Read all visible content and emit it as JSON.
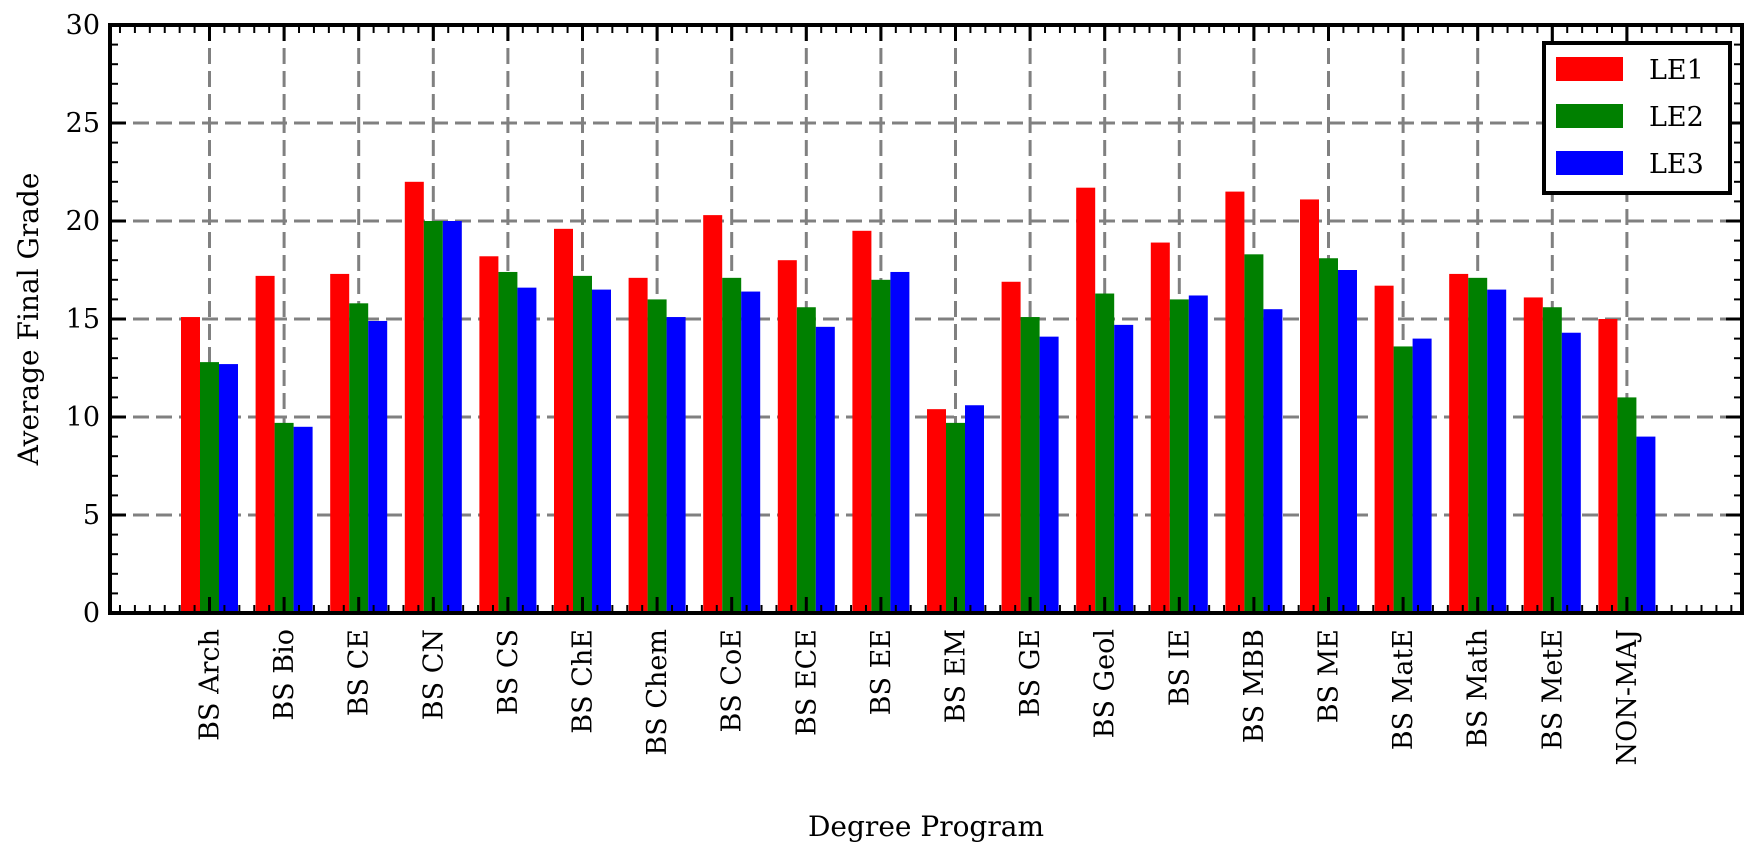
{
  "chart_data": {
    "type": "bar",
    "title": "",
    "xlabel": "Degree Program",
    "ylabel": "Average Final Grade",
    "ylim": [
      0,
      30
    ],
    "yticks": [
      0,
      5,
      10,
      15,
      20,
      25,
      30
    ],
    "grid": true,
    "legend_position": "top-right",
    "categories": [
      "BS Arch",
      "BS Bio",
      "BS CE",
      "BS CN",
      "BS CS",
      "BS ChE",
      "BS Chem",
      "BS CoE",
      "BS ECE",
      "BS EE",
      "BS EM",
      "BS GE",
      "BS Geol",
      "BS IE",
      "BS MBB",
      "BS ME",
      "BS MatE",
      "BS Math",
      "BS MetE",
      "NON-MAJ"
    ],
    "series": [
      {
        "name": "LE1",
        "color": "#ff0000",
        "values": [
          15.1,
          17.2,
          17.3,
          22.0,
          18.2,
          19.6,
          17.1,
          20.3,
          18.0,
          19.5,
          10.4,
          16.9,
          21.7,
          18.9,
          21.5,
          21.1,
          16.7,
          17.3,
          16.1,
          15.0
        ]
      },
      {
        "name": "LE2",
        "color": "#008000",
        "values": [
          12.8,
          9.7,
          15.8,
          20.0,
          17.4,
          17.2,
          16.0,
          17.1,
          15.6,
          17.0,
          9.7,
          15.1,
          16.3,
          16.0,
          18.3,
          18.1,
          13.6,
          17.1,
          15.6,
          11.0
        ]
      },
      {
        "name": "LE3",
        "color": "#0000ff",
        "values": [
          12.7,
          9.5,
          14.9,
          20.0,
          16.6,
          16.5,
          15.1,
          16.4,
          14.6,
          17.4,
          10.6,
          14.1,
          14.7,
          16.2,
          15.5,
          17.5,
          14.0,
          16.5,
          14.3,
          9.0
        ]
      }
    ]
  }
}
